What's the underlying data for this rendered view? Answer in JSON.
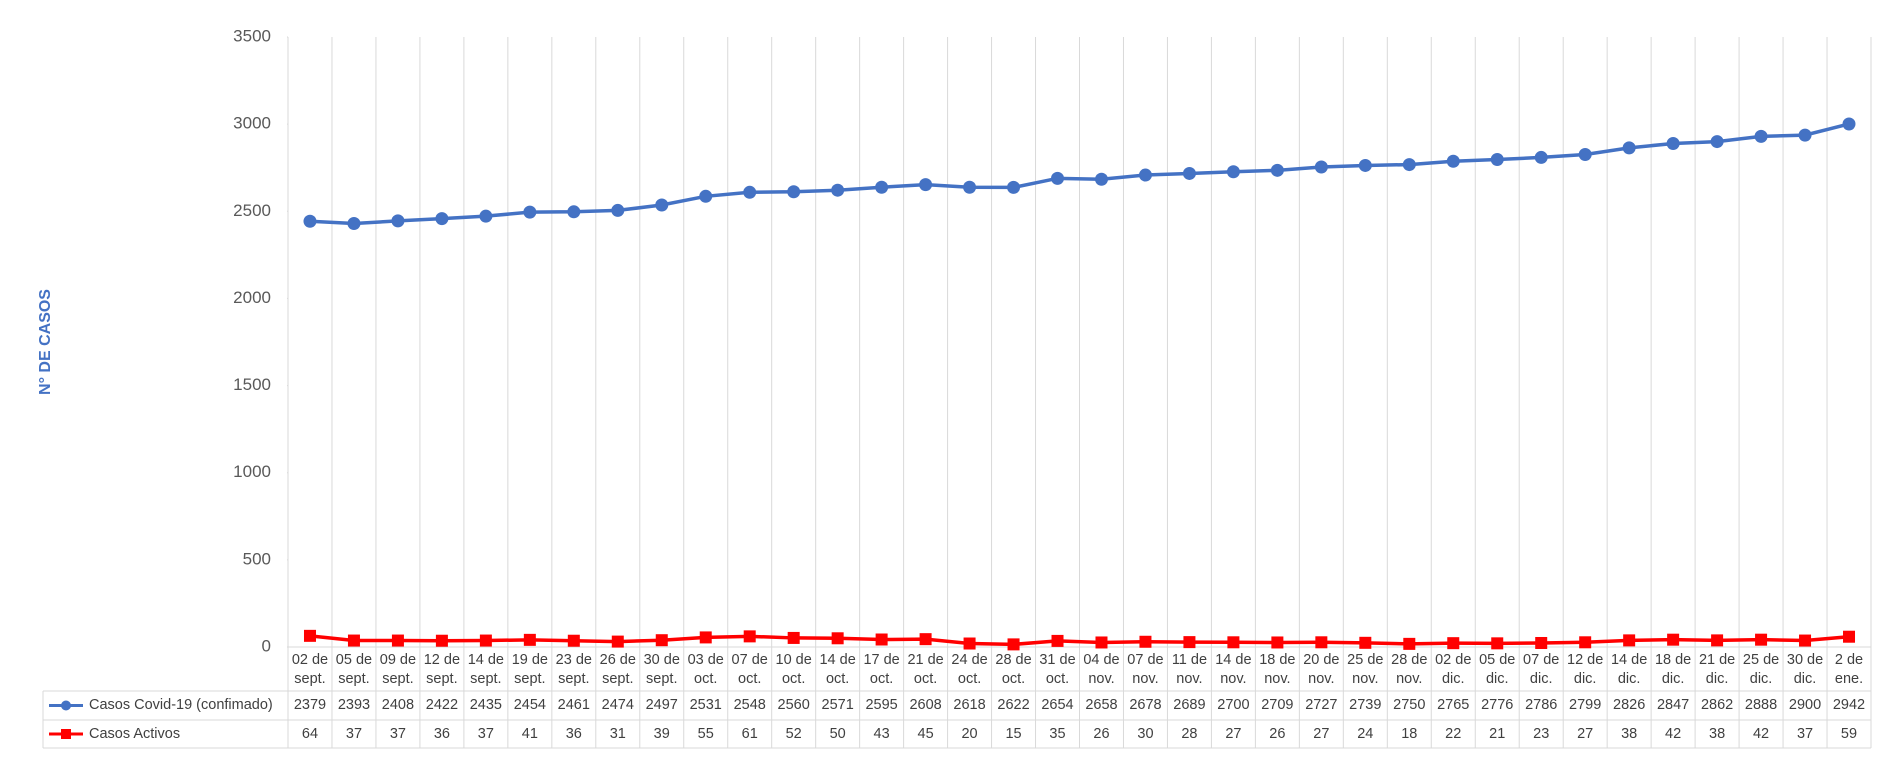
{
  "chart_data": {
    "type": "line",
    "stacked": true,
    "ylabel": "N° DE CASOS",
    "categories": [
      "02 de sept.",
      "05 de sept.",
      "09 de sept.",
      "12 de sept.",
      "14 de sept.",
      "19 de sept.",
      "23 de sept.",
      "26 de sept.",
      "30 de sept.",
      "03 de oct.",
      "07 de oct.",
      "10 de oct.",
      "14 de oct.",
      "17 de oct.",
      "21 de oct.",
      "24 de oct.",
      "28 de oct.",
      "31 de oct.",
      "04 de nov.",
      "07 de nov.",
      "11 de nov.",
      "14 de nov.",
      "18 de nov.",
      "20 de nov.",
      "25 de nov.",
      "28 de nov.",
      "02 de dic.",
      "05 de dic.",
      "07 de dic.",
      "12 de dic.",
      "14 de dic.",
      "18 de dic.",
      "21 de dic.",
      "25 de dic.",
      "30 de dic.",
      "2 de ene."
    ],
    "series": [
      {
        "name": "Casos Covid-19 (confimado)",
        "color": "#4472c4",
        "marker": "circle",
        "values": [
          2379,
          2393,
          2408,
          2422,
          2435,
          2454,
          2461,
          2474,
          2497,
          2531,
          2548,
          2560,
          2571,
          2595,
          2608,
          2618,
          2622,
          2654,
          2658,
          2678,
          2689,
          2700,
          2709,
          2727,
          2739,
          2750,
          2765,
          2776,
          2786,
          2799,
          2826,
          2847,
          2862,
          2888,
          2900,
          2942
        ]
      },
      {
        "name": "Casos Activos",
        "color": "#ff0000",
        "marker": "square",
        "values": [
          64,
          37,
          37,
          36,
          37,
          41,
          36,
          31,
          39,
          55,
          61,
          52,
          50,
          43,
          45,
          20,
          15,
          35,
          26,
          30,
          28,
          27,
          26,
          27,
          24,
          18,
          22,
          21,
          23,
          27,
          38,
          42,
          38,
          42,
          37,
          59
        ]
      }
    ],
    "ylim": [
      0,
      3500
    ],
    "yticks": [
      0,
      500,
      1000,
      1500,
      2000,
      2500,
      3000,
      3500
    ]
  }
}
